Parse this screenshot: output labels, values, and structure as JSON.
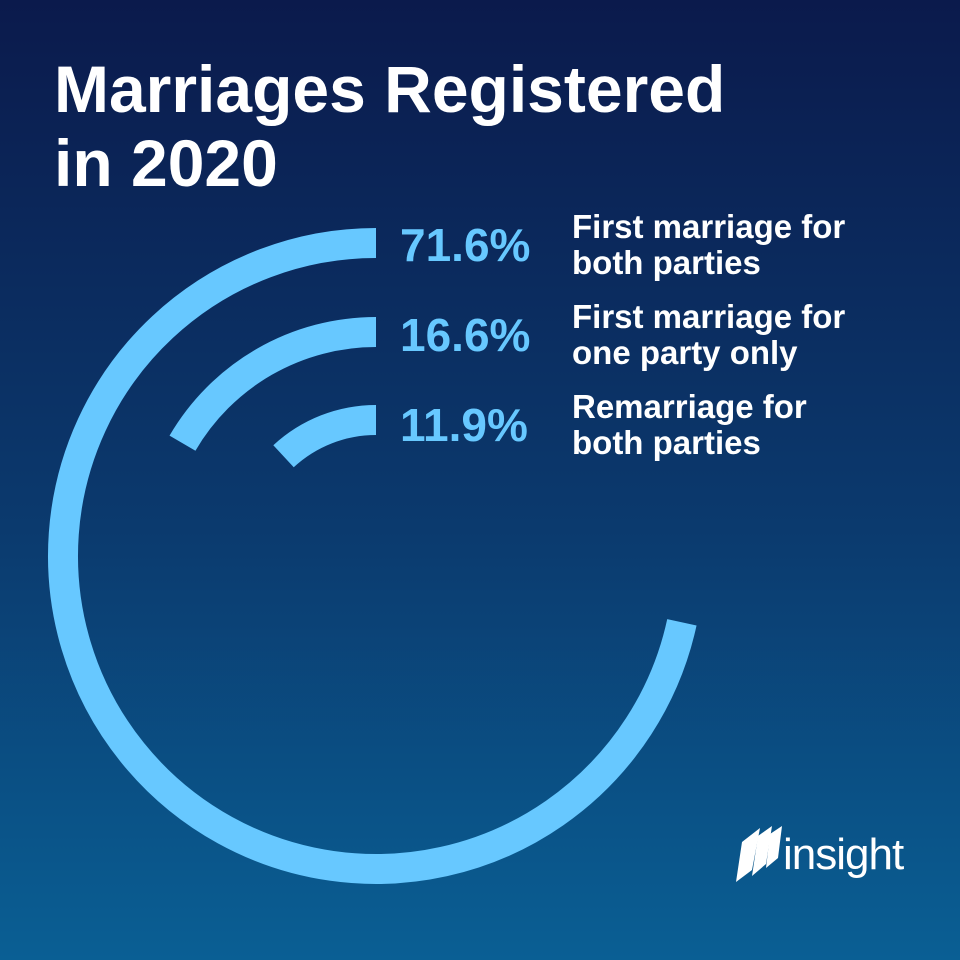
{
  "chart_data": {
    "type": "radial_bar",
    "title": "Marriages Registered in 2020",
    "categories": [
      "First marriage for both parties",
      "First marriage for one party only",
      "Remarriage for both parties"
    ],
    "values": [
      71.6,
      16.6,
      11.9
    ],
    "value_labels": [
      "71.6%",
      "16.6%",
      "11.9%"
    ],
    "color": "#67c8ff",
    "logo": "insight"
  }
}
